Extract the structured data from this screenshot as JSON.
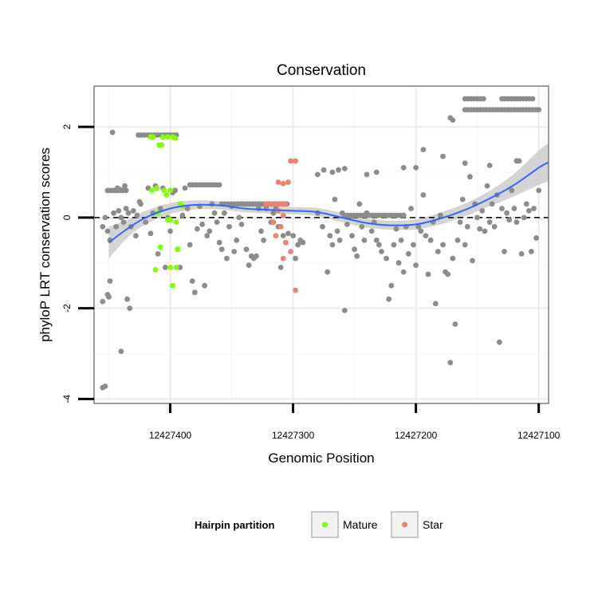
{
  "chart_data": {
    "type": "scatter",
    "title": "Conservation",
    "xlabel": "Genomic Position",
    "ylabel": "phyloP LRT conservation scores",
    "x_reversed": true,
    "xlim": [
      12427462,
      12427092
    ],
    "ylim": [
      -4.1,
      2.9
    ],
    "x_ticks": [
      12427400,
      12427300,
      12427200,
      12427100
    ],
    "x_tick_labels": [
      "12427400",
      "12427300",
      "12427200",
      "12427100"
    ],
    "y_ticks": [
      -4,
      -2,
      0,
      2
    ],
    "y_tick_labels": [
      "-4",
      "-2",
      "0",
      "2"
    ],
    "grid": true,
    "reference_line": {
      "y": 0,
      "style": "dashed"
    },
    "legend": {
      "title": "Hairpin partition",
      "position": "bottom",
      "entries": [
        {
          "label": "Mature",
          "color": "#7fff00"
        },
        {
          "label": "Star",
          "color": "#f08070"
        }
      ]
    },
    "colors": {
      "other": "#8c8c8c",
      "mature": "#7fff00",
      "star": "#f08070",
      "smooth": "#3366ff",
      "band": "#cccccc"
    },
    "smooth_curve": [
      {
        "x": 12427450,
        "y": -0.55,
        "ymin": -0.9,
        "ymax": -0.2
      },
      {
        "x": 12427435,
        "y": -0.25,
        "ymin": -0.45,
        "ymax": -0.05
      },
      {
        "x": 12427420,
        "y": 0.0,
        "ymin": -0.15,
        "ymax": 0.15
      },
      {
        "x": 12427400,
        "y": 0.2,
        "ymin": 0.08,
        "ymax": 0.32
      },
      {
        "x": 12427380,
        "y": 0.28,
        "ymin": 0.18,
        "ymax": 0.38
      },
      {
        "x": 12427360,
        "y": 0.27,
        "ymin": 0.18,
        "ymax": 0.36
      },
      {
        "x": 12427340,
        "y": 0.2,
        "ymin": 0.12,
        "ymax": 0.28
      },
      {
        "x": 12427320,
        "y": 0.17,
        "ymin": 0.09,
        "ymax": 0.25
      },
      {
        "x": 12427300,
        "y": 0.15,
        "ymin": 0.07,
        "ymax": 0.23
      },
      {
        "x": 12427280,
        "y": 0.12,
        "ymin": 0.03,
        "ymax": 0.21
      },
      {
        "x": 12427260,
        "y": 0.0,
        "ymin": -0.1,
        "ymax": 0.1
      },
      {
        "x": 12427240,
        "y": -0.12,
        "ymin": -0.22,
        "ymax": -0.02
      },
      {
        "x": 12427220,
        "y": -0.17,
        "ymin": -0.27,
        "ymax": -0.07
      },
      {
        "x": 12427200,
        "y": -0.15,
        "ymin": -0.26,
        "ymax": -0.04
      },
      {
        "x": 12427180,
        "y": -0.02,
        "ymin": -0.15,
        "ymax": 0.11
      },
      {
        "x": 12427160,
        "y": 0.17,
        "ymin": 0.03,
        "ymax": 0.31
      },
      {
        "x": 12427140,
        "y": 0.42,
        "ymin": 0.25,
        "ymax": 0.59
      },
      {
        "x": 12427120,
        "y": 0.72,
        "ymin": 0.47,
        "ymax": 0.97
      },
      {
        "x": 12427100,
        "y": 1.1,
        "ymin": 0.72,
        "ymax": 1.48
      },
      {
        "x": 12427092,
        "y": 1.22,
        "ymin": 0.8,
        "ymax": 1.64
      }
    ],
    "series": [
      {
        "group": "other",
        "points": [
          [
            12427455,
            -3.75
          ],
          [
            12427453,
            -3.72
          ],
          [
            12427447,
            1.88
          ],
          [
            12427440,
            -2.95
          ],
          [
            12427455,
            -1.85
          ],
          [
            12427451,
            -1.7
          ],
          [
            12427450,
            -1.75
          ],
          [
            12427449,
            -1.4
          ],
          [
            12427443,
            0.65
          ],
          [
            12427441,
            0.62
          ],
          [
            12427437,
            0.7
          ],
          [
            12427435,
            -1.8
          ],
          [
            12427433,
            -2.0
          ],
          [
            12427455,
            -0.2
          ],
          [
            12427453,
            0.0
          ],
          [
            12427451,
            -0.3
          ],
          [
            12427449,
            -0.5
          ],
          [
            12427446,
            0.1
          ],
          [
            12427444,
            -0.2
          ],
          [
            12427442,
            0.15
          ],
          [
            12427440,
            0.0
          ],
          [
            12427438,
            -0.1
          ],
          [
            12427436,
            0.2
          ],
          [
            12427434,
            0.1
          ],
          [
            12427432,
            -0.2
          ],
          [
            12427430,
            0.15
          ],
          [
            12427428,
            -0.4
          ],
          [
            12427427,
            0.05
          ],
          [
            12427425,
            0.35
          ],
          [
            12427424,
            0.3
          ],
          [
            12427420,
            -0.1
          ],
          [
            12427418,
            0.65
          ],
          [
            12427416,
            -0.35
          ],
          [
            12427414,
            0.1
          ],
          [
            12427412,
            0.7
          ],
          [
            12427410,
            -0.8
          ],
          [
            12427408,
            0.2
          ],
          [
            12427406,
            0.65
          ],
          [
            12427404,
            -1.1
          ],
          [
            12427402,
            0.0
          ],
          [
            12427400,
            -0.3
          ],
          [
            12427398,
            0.55
          ],
          [
            12427396,
            0.6
          ],
          [
            12427394,
            -0.7
          ],
          [
            12427392,
            -1.1
          ],
          [
            12427390,
            0.05
          ],
          [
            12427388,
            0.65
          ],
          [
            12427386,
            0.2
          ],
          [
            12427384,
            -0.6
          ],
          [
            12427382,
            -1.4
          ],
          [
            12427380,
            -1.65
          ],
          [
            12427378,
            -0.25
          ],
          [
            12427376,
            0.25
          ],
          [
            12427374,
            -0.15
          ],
          [
            12427372,
            -1.5
          ],
          [
            12427370,
            -0.4
          ],
          [
            12427368,
            -0.3
          ],
          [
            12427366,
            0.3
          ],
          [
            12427364,
            0.1
          ],
          [
            12427362,
            -0.1
          ],
          [
            12427360,
            -0.55
          ],
          [
            12427358,
            -0.7
          ],
          [
            12427356,
            0.1
          ],
          [
            12427354,
            -0.9
          ],
          [
            12427352,
            -0.2
          ],
          [
            12427350,
            0.25
          ],
          [
            12427348,
            -0.75
          ],
          [
            12427346,
            -0.5
          ],
          [
            12427344,
            0.0
          ],
          [
            12427342,
            -0.15
          ],
          [
            12427338,
            -0.7
          ],
          [
            12427336,
            -1.05
          ],
          [
            12427334,
            -0.85
          ],
          [
            12427332,
            -0.9
          ],
          [
            12427330,
            -0.85
          ],
          [
            12427328,
            0.2
          ],
          [
            12427326,
            -0.3
          ],
          [
            12427324,
            -0.5
          ],
          [
            12427322,
            0.2
          ],
          [
            12427318,
            -0.1
          ],
          [
            12427316,
            0.1
          ],
          [
            12427314,
            0.2
          ],
          [
            12427312,
            -0.2
          ],
          [
            12427310,
            -1.1
          ],
          [
            12427308,
            -0.4
          ],
          [
            12427304,
            -0.35
          ],
          [
            12427300,
            -0.4
          ],
          [
            12427298,
            -0.9
          ],
          [
            12427296,
            -0.6
          ],
          [
            12427294,
            -0.5
          ],
          [
            12427292,
            -0.55
          ],
          [
            12427280,
            0.1
          ],
          [
            12427276,
            -0.2
          ],
          [
            12427272,
            -1.2
          ],
          [
            12427270,
            -0.4
          ],
          [
            12427268,
            -0.6
          ],
          [
            12427266,
            0.4
          ],
          [
            12427264,
            -0.3
          ],
          [
            12427262,
            -0.5
          ],
          [
            12427260,
            0.1
          ],
          [
            12427258,
            -2.05
          ],
          [
            12427256,
            -0.15
          ],
          [
            12427254,
            0.0
          ],
          [
            12427252,
            -0.4
          ],
          [
            12427250,
            -0.7
          ],
          [
            12427248,
            -0.85
          ],
          [
            12427246,
            0.3
          ],
          [
            12427244,
            -0.2
          ],
          [
            12427242,
            -0.5
          ],
          [
            12427240,
            0.1
          ],
          [
            12427236,
            -0.3
          ],
          [
            12427234,
            -0.1
          ],
          [
            12427232,
            -0.5
          ],
          [
            12427230,
            -0.6
          ],
          [
            12427228,
            -0.75
          ],
          [
            12427224,
            -0.9
          ],
          [
            12427222,
            -1.8
          ],
          [
            12427220,
            -1.5
          ],
          [
            12427218,
            -0.6
          ],
          [
            12427216,
            -0.25
          ],
          [
            12427214,
            -1.0
          ],
          [
            12427212,
            -0.5
          ],
          [
            12427210,
            -1.2
          ],
          [
            12427208,
            -0.2
          ],
          [
            12427206,
            -0.8
          ],
          [
            12427204,
            0.2
          ],
          [
            12427202,
            -0.6
          ],
          [
            12427200,
            -1.05
          ],
          [
            12427198,
            -0.2
          ],
          [
            12427196,
            -0.3
          ],
          [
            12427194,
            0.5
          ],
          [
            12427192,
            -0.4
          ],
          [
            12427190,
            -1.25
          ],
          [
            12427188,
            -0.5
          ],
          [
            12427186,
            -0.1
          ],
          [
            12427184,
            -1.9
          ],
          [
            12427182,
            -0.75
          ],
          [
            12427180,
            0.05
          ],
          [
            12427178,
            -0.6
          ],
          [
            12427176,
            -1.2
          ],
          [
            12427174,
            -1.25
          ],
          [
            12427172,
            -3.2
          ],
          [
            12427170,
            -0.9
          ],
          [
            12427168,
            -2.35
          ],
          [
            12427166,
            -0.5
          ],
          [
            12427164,
            -0.1
          ],
          [
            12427162,
            0.4
          ],
          [
            12427160,
            -0.6
          ],
          [
            12427158,
            -0.2
          ],
          [
            12427156,
            0.9
          ],
          [
            12427154,
            -0.95
          ],
          [
            12427152,
            0.3
          ],
          [
            12427150,
            0.0
          ],
          [
            12427148,
            -0.25
          ],
          [
            12427146,
            0.15
          ],
          [
            12427144,
            -0.3
          ],
          [
            12427142,
            0.7
          ],
          [
            12427140,
            -0.1
          ],
          [
            12427138,
            0.3
          ],
          [
            12427136,
            -0.2
          ],
          [
            12427134,
            0.5
          ],
          [
            12427132,
            -2.75
          ],
          [
            12427130,
            0.2
          ],
          [
            12427128,
            -0.75
          ],
          [
            12427126,
            0.1
          ],
          [
            12427124,
            -0.05
          ],
          [
            12427122,
            0.6
          ],
          [
            12427120,
            0.2
          ],
          [
            12427118,
            -0.1
          ],
          [
            12427116,
            1.25
          ],
          [
            12427114,
            -0.8
          ],
          [
            12427112,
            0.0
          ],
          [
            12427110,
            0.3
          ],
          [
            12427108,
            0.15
          ],
          [
            12427106,
            -0.75
          ],
          [
            12427104,
            0.2
          ],
          [
            12427102,
            -0.45
          ],
          [
            12427100,
            0.6
          ],
          [
            12427280,
            0.95
          ],
          [
            12427275,
            1.05
          ],
          [
            12427268,
            1.0
          ],
          [
            12427263,
            1.05
          ],
          [
            12427258,
            1.08
          ],
          [
            12427240,
            0.95
          ],
          [
            12427232,
            1.0
          ],
          [
            12427210,
            1.1
          ],
          [
            12427200,
            1.1
          ],
          [
            12427194,
            1.5
          ],
          [
            12427178,
            1.35
          ],
          [
            12427160,
            1.2
          ],
          [
            12427140,
            1.15
          ],
          [
            12427118,
            1.25
          ],
          [
            12427172,
            2.2
          ],
          [
            12427170,
            2.15
          ]
        ],
        "clusters": [
          {
            "x_from": 12427451,
            "x_to": 12427436,
            "y": 0.6
          },
          {
            "x_from": 12427426,
            "x_to": 12427395,
            "y": 1.82
          },
          {
            "x_from": 12427384,
            "x_to": 12427360,
            "y": 0.72
          },
          {
            "x_from": 12427358,
            "x_to": 12427305,
            "y": 0.3
          },
          {
            "x_from": 12427258,
            "x_to": 12427210,
            "y": 0.05
          },
          {
            "x_from": 12427160,
            "x_to": 12427145,
            "y": 2.62
          },
          {
            "x_from": 12427160,
            "x_to": 12427100,
            "y": 2.38
          },
          {
            "x_from": 12427130,
            "x_to": 12427105,
            "y": 2.62
          }
        ]
      },
      {
        "group": "mature",
        "name": "Mature",
        "points": [
          [
            12427416,
            1.78
          ],
          [
            12427414,
            1.78
          ],
          [
            12427409,
            1.6
          ],
          [
            12427407,
            1.6
          ],
          [
            12427406,
            1.78
          ],
          [
            12427402,
            1.78
          ],
          [
            12427398,
            1.78
          ],
          [
            12427396,
            1.75
          ],
          [
            12427415,
            0.6
          ],
          [
            12427411,
            0.65
          ],
          [
            12427405,
            0.6
          ],
          [
            12427403,
            0.5
          ],
          [
            12427400,
            0.6
          ],
          [
            12427392,
            0.3
          ],
          [
            12427390,
            0.25
          ],
          [
            12427402,
            -0.05
          ],
          [
            12427400,
            -0.05
          ],
          [
            12427395,
            -0.1
          ],
          [
            12427408,
            -0.65
          ],
          [
            12427394,
            -0.7
          ],
          [
            12427400,
            -1.1
          ],
          [
            12427395,
            -1.1
          ],
          [
            12427412,
            -1.15
          ],
          [
            12427398,
            -1.5
          ],
          [
            12427410,
            0.1
          ]
        ]
      },
      {
        "group": "star",
        "name": "Star",
        "points": [
          [
            12427302,
            1.25
          ],
          [
            12427298,
            1.25
          ],
          [
            12427312,
            0.78
          ],
          [
            12427308,
            0.75
          ],
          [
            12427304,
            0.78
          ],
          [
            12427322,
            0.3
          ],
          [
            12427318,
            0.3
          ],
          [
            12427314,
            0.3
          ],
          [
            12427310,
            0.3
          ],
          [
            12427306,
            0.3
          ],
          [
            12427312,
            0.15
          ],
          [
            12427308,
            0.05
          ],
          [
            12427316,
            -0.1
          ],
          [
            12427310,
            -0.2
          ],
          [
            12427314,
            -0.4
          ],
          [
            12427306,
            -0.55
          ],
          [
            12427302,
            -0.75
          ],
          [
            12427308,
            -0.9
          ],
          [
            12427298,
            -1.6
          ]
        ]
      }
    ]
  }
}
